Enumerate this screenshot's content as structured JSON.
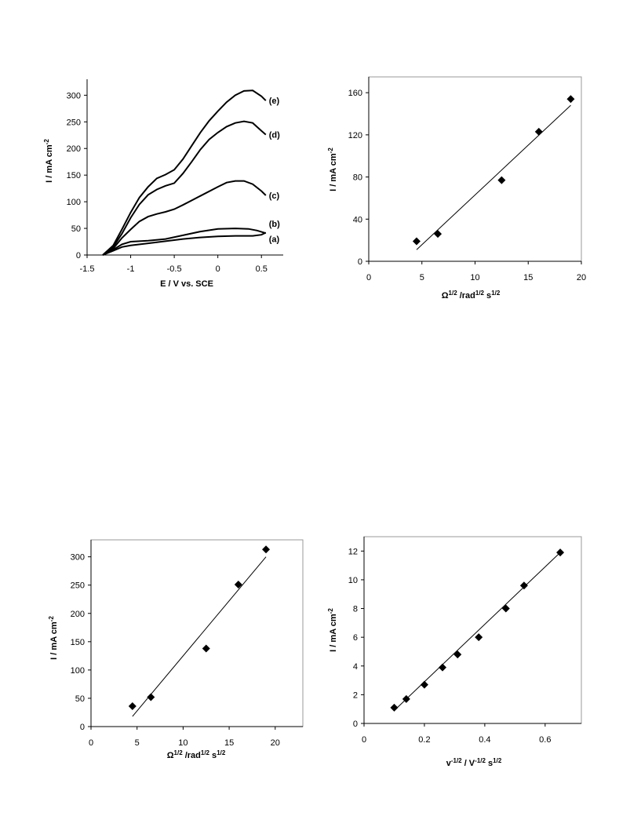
{
  "chart_data": [
    {
      "type": "line",
      "xlabel": "E / V vs. SCE",
      "ylabel": "I / mA cm⁻²",
      "xlim": [
        -1.5,
        0.75
      ],
      "ylim": [
        0,
        330
      ],
      "xticks": [
        "-1.5",
        "-1",
        "-0.5",
        "0",
        "0.5"
      ],
      "yticks": [
        "0",
        "50",
        "100",
        "150",
        "200",
        "250",
        "300"
      ],
      "grid": false,
      "series": [
        {
          "name": "(a)",
          "points": [
            [
              -1.32,
              0
            ],
            [
              -1.2,
              8
            ],
            [
              -1.1,
              15
            ],
            [
              -1.0,
              18
            ],
            [
              -0.8,
              22
            ],
            [
              -0.6,
              26
            ],
            [
              -0.4,
              30
            ],
            [
              -0.2,
              33
            ],
            [
              0.0,
              35
            ],
            [
              0.2,
              36
            ],
            [
              0.4,
              36
            ],
            [
              0.5,
              38
            ],
            [
              0.55,
              42
            ]
          ]
        },
        {
          "name": "(b)",
          "points": [
            [
              -1.32,
              0
            ],
            [
              -1.2,
              10
            ],
            [
              -1.1,
              20
            ],
            [
              -1.0,
              25
            ],
            [
              -0.8,
              27
            ],
            [
              -0.6,
              30
            ],
            [
              -0.4,
              37
            ],
            [
              -0.2,
              44
            ],
            [
              0.0,
              49
            ],
            [
              0.2,
              50
            ],
            [
              0.35,
              49
            ],
            [
              0.45,
              46
            ],
            [
              0.55,
              41
            ]
          ]
        },
        {
          "name": "(c)",
          "points": [
            [
              -1.32,
              0
            ],
            [
              -1.2,
              12
            ],
            [
              -1.1,
              32
            ],
            [
              -1.0,
              48
            ],
            [
              -0.9,
              63
            ],
            [
              -0.8,
              72
            ],
            [
              -0.7,
              77
            ],
            [
              -0.6,
              81
            ],
            [
              -0.5,
              86
            ],
            [
              -0.4,
              94
            ],
            [
              -0.2,
              111
            ],
            [
              0.0,
              128
            ],
            [
              0.1,
              136
            ],
            [
              0.2,
              139
            ],
            [
              0.3,
              139
            ],
            [
              0.4,
              133
            ],
            [
              0.5,
              120
            ],
            [
              0.55,
              112
            ]
          ]
        },
        {
          "name": "(d)",
          "points": [
            [
              -1.32,
              0
            ],
            [
              -1.2,
              15
            ],
            [
              -1.1,
              40
            ],
            [
              -1.0,
              70
            ],
            [
              -0.9,
              95
            ],
            [
              -0.8,
              113
            ],
            [
              -0.7,
              123
            ],
            [
              -0.6,
              130
            ],
            [
              -0.5,
              135
            ],
            [
              -0.4,
              153
            ],
            [
              -0.3,
              175
            ],
            [
              -0.2,
              198
            ],
            [
              -0.1,
              217
            ],
            [
              0.0,
              230
            ],
            [
              0.1,
              241
            ],
            [
              0.2,
              248
            ],
            [
              0.3,
              251
            ],
            [
              0.4,
              248
            ],
            [
              0.5,
              233
            ],
            [
              0.55,
              226
            ]
          ]
        },
        {
          "name": "(e)",
          "points": [
            [
              -1.32,
              0
            ],
            [
              -1.2,
              18
            ],
            [
              -1.1,
              48
            ],
            [
              -1.0,
              80
            ],
            [
              -0.9,
              108
            ],
            [
              -0.8,
              128
            ],
            [
              -0.7,
              144
            ],
            [
              -0.6,
              151
            ],
            [
              -0.5,
              160
            ],
            [
              -0.4,
              180
            ],
            [
              -0.3,
              205
            ],
            [
              -0.2,
              230
            ],
            [
              -0.1,
              252
            ],
            [
              0.0,
              270
            ],
            [
              0.1,
              287
            ],
            [
              0.2,
              300
            ],
            [
              0.3,
              308
            ],
            [
              0.4,
              309
            ],
            [
              0.5,
              298
            ],
            [
              0.55,
              290
            ]
          ]
        }
      ]
    },
    {
      "type": "scatter",
      "xlabel": "Ω¹ᐟ² /rad¹ᐟ² s¹ᐟ²",
      "ylabel": "I / mA cm⁻²",
      "xlim": [
        0,
        20
      ],
      "ylim": [
        0,
        175
      ],
      "xticks": [
        "0",
        "5",
        "10",
        "15",
        "20"
      ],
      "yticks": [
        "0",
        "40",
        "80",
        "120",
        "160"
      ],
      "grid": false,
      "x": [
        4.5,
        6.5,
        12.5,
        16,
        19
      ],
      "y": [
        19,
        26,
        77,
        123,
        154
      ],
      "fit": [
        [
          4.5,
          11
        ],
        [
          19,
          148
        ]
      ]
    },
    {
      "type": "scatter",
      "xlabel": "Ω¹ᐟ² /rad¹ᐟ² s¹ᐟ²",
      "ylabel": "I / mA cm⁻²",
      "xlim": [
        0,
        23
      ],
      "ylim": [
        0,
        330
      ],
      "xticks": [
        "0",
        "5",
        "10",
        "15",
        "20"
      ],
      "yticks": [
        "0",
        "50",
        "100",
        "150",
        "200",
        "250",
        "300"
      ],
      "grid": false,
      "x": [
        4.5,
        6.5,
        12.5,
        16,
        19
      ],
      "y": [
        36,
        52,
        138,
        251,
        313
      ],
      "fit": [
        [
          4.5,
          18
        ],
        [
          19,
          300
        ]
      ]
    },
    {
      "type": "scatter",
      "xlabel": "v⁻¹ᐟ² / V⁻¹ᐟ² s¹ᐟ²",
      "ylabel": "I / mA cm⁻²",
      "xlim": [
        0,
        0.72
      ],
      "ylim": [
        0,
        13
      ],
      "xticks": [
        "0",
        "0.2",
        "0.4",
        "0.6"
      ],
      "yticks": [
        "0",
        "2",
        "4",
        "6",
        "8",
        "10",
        "12"
      ],
      "grid": false,
      "x": [
        0.1,
        0.14,
        0.2,
        0.26,
        0.31,
        0.38,
        0.47,
        0.53,
        0.65
      ],
      "y": [
        1.1,
        1.7,
        2.7,
        3.9,
        4.8,
        6.0,
        8.0,
        9.6,
        11.9
      ],
      "fit": [
        [
          0.1,
          0.9
        ],
        [
          0.65,
          11.9
        ]
      ]
    }
  ]
}
